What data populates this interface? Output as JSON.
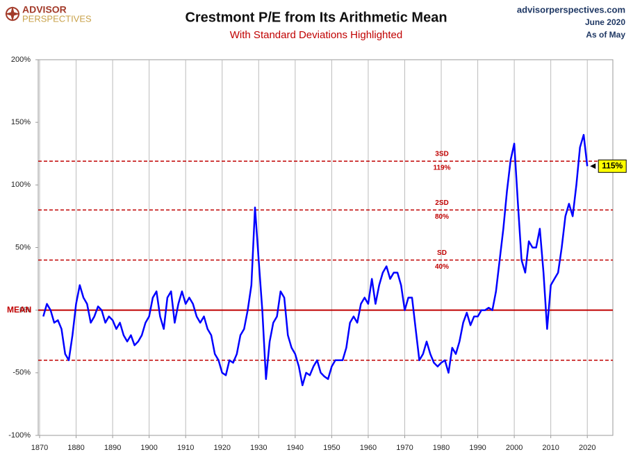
{
  "brand": {
    "name": "ADVISOR",
    "tagline": "PERSPECTIVES"
  },
  "source": {
    "site": "advisorperspectives.com",
    "date": "June 2020",
    "as_of": "As of May"
  },
  "chart_data": {
    "type": "line",
    "title": "Crestmont P/E from Its Arithmetic Mean",
    "subtitle": "With Standard Deviations Highlighted",
    "x": [
      1871,
      1872,
      1873,
      1874,
      1875,
      1876,
      1877,
      1878,
      1879,
      1880,
      1881,
      1882,
      1883,
      1884,
      1885,
      1886,
      1887,
      1888,
      1889,
      1890,
      1891,
      1892,
      1893,
      1894,
      1895,
      1896,
      1897,
      1898,
      1899,
      1900,
      1901,
      1902,
      1903,
      1904,
      1905,
      1906,
      1907,
      1908,
      1909,
      1910,
      1911,
      1912,
      1913,
      1914,
      1915,
      1916,
      1917,
      1918,
      1919,
      1920,
      1921,
      1922,
      1923,
      1924,
      1925,
      1926,
      1927,
      1928,
      1929,
      1930,
      1931,
      1932,
      1933,
      1934,
      1935,
      1936,
      1937,
      1938,
      1939,
      1940,
      1941,
      1942,
      1943,
      1944,
      1945,
      1946,
      1947,
      1948,
      1949,
      1950,
      1951,
      1952,
      1953,
      1954,
      1955,
      1956,
      1957,
      1958,
      1959,
      1960,
      1961,
      1962,
      1963,
      1964,
      1965,
      1966,
      1967,
      1968,
      1969,
      1970,
      1971,
      1972,
      1973,
      1974,
      1975,
      1976,
      1977,
      1978,
      1979,
      1980,
      1981,
      1982,
      1983,
      1984,
      1985,
      1986,
      1987,
      1988,
      1989,
      1990,
      1991,
      1992,
      1993,
      1994,
      1995,
      1996,
      1997,
      1998,
      1999,
      2000,
      2001,
      2002,
      2003,
      2004,
      2005,
      2006,
      2007,
      2008,
      2009,
      2010,
      2011,
      2012,
      2013,
      2014,
      2015,
      2016,
      2017,
      2018,
      2019,
      2020
    ],
    "series": [
      {
        "color": "#0000ff",
        "values": [
          -5,
          5,
          0,
          -10,
          -8,
          -15,
          -35,
          -40,
          -20,
          5,
          20,
          10,
          5,
          -10,
          -5,
          3,
          0,
          -10,
          -5,
          -8,
          -15,
          -10,
          -20,
          -25,
          -20,
          -28,
          -25,
          -20,
          -10,
          -5,
          10,
          15,
          -5,
          -15,
          10,
          15,
          -10,
          5,
          15,
          5,
          10,
          5,
          -5,
          -10,
          -5,
          -15,
          -20,
          -35,
          -40,
          -50,
          -52,
          -40,
          -42,
          -35,
          -20,
          -15,
          0,
          20,
          82,
          40,
          0,
          -55,
          -25,
          -10,
          -5,
          15,
          10,
          -20,
          -30,
          -35,
          -45,
          -60,
          -50,
          -52,
          -45,
          -40,
          -50,
          -53,
          -55,
          -45,
          -40,
          -40,
          -40,
          -30,
          -10,
          -5,
          -10,
          5,
          10,
          5,
          25,
          5,
          20,
          30,
          35,
          25,
          30,
          30,
          20,
          0,
          10,
          10,
          -15,
          -40,
          -35,
          -25,
          -35,
          -42,
          -45,
          -42,
          -40,
          -50,
          -30,
          -35,
          -25,
          -10,
          -2,
          -12,
          -5,
          -5,
          0,
          0,
          2,
          0,
          15,
          40,
          65,
          95,
          120,
          133,
          85,
          40,
          30,
          55,
          50,
          50,
          65,
          30,
          -15,
          20,
          25,
          30,
          50,
          75,
          85,
          75,
          100,
          130,
          140,
          115
        ]
      }
    ],
    "xlim": [
      1870,
      2027
    ],
    "xticks": [
      1870,
      1880,
      1890,
      1900,
      1910,
      1920,
      1930,
      1940,
      1950,
      1960,
      1970,
      1980,
      1990,
      2000,
      2010,
      2020
    ],
    "ylim": [
      -100,
      200
    ],
    "yticks": [
      {
        "value": -100,
        "label": "-100%"
      },
      {
        "value": -50,
        "label": "-50%"
      },
      {
        "value": 0,
        "label": "0%"
      },
      {
        "value": 50,
        "label": "50%"
      },
      {
        "value": 100,
        "label": "100%"
      },
      {
        "value": 150,
        "label": "150%"
      },
      {
        "value": 200,
        "label": "200%"
      }
    ],
    "reference_lines": [
      {
        "value": 0,
        "label": "MEAN"
      },
      {
        "value": 119,
        "name": "3SD",
        "label": "119%"
      },
      {
        "value": 80,
        "name": "2SD",
        "label": "80%"
      },
      {
        "value": 40,
        "name": "SD",
        "label": "40%"
      },
      {
        "value": -40
      }
    ],
    "annotation": {
      "x": 2020,
      "value": 115,
      "label": "115%"
    },
    "grid": true
  }
}
